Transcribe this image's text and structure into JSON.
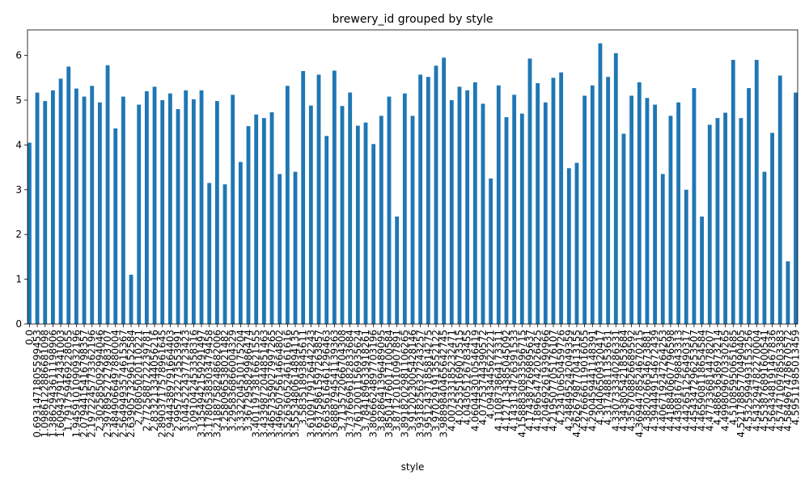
{
  "chart_data": {
    "type": "bar",
    "title": "brewery_id grouped by style",
    "x_label": "style",
    "color": "#1f77b4",
    "categories": [
      "0.0",
      "0.6931471805599453",
      "1.0986122886681098",
      "1.3862943611198906",
      "1.6094379124341003",
      "1.791759469228055",
      "1.9459101090932196",
      "2.0794415416798357",
      "2.1972245773362196",
      "2.302585092994046",
      "2.3978952727983707",
      "2.4849066497880004",
      "2.5649493574615367",
      "2.6390573296152584",
      "2.70805020110221",
      "2.772588722239781",
      "2.833213344056216",
      "2.8903717578961645",
      "2.9444389791664403",
      "2.995732273553991",
      "3.044522437723423",
      "3.091042453358316",
      "3.1354942159291497",
      "3.1780538303479458",
      "3.2188758248682006",
      "3.258096538021482",
      "3.295836866004329",
      "3.332204510175204",
      "3.367295829986474",
      "3.4011973816621555",
      "3.4339872044851463",
      "3.4657359027997265",
      "3.4965075614664802",
      "3.5263605246161616",
      "3.5553480614894135",
      "3.58351893845611",
      "3.6109179126442243",
      "3.6375861597263857",
      "3.6635616461296463",
      "3.6888794541139363",
      "3.713572066704308",
      "3.7376696182833684",
      "3.7612001156935624",
      "3.784189633918261",
      "3.8066624897703196",
      "3.828641396489095",
      "3.8501476017100584",
      "3.871201010907891",
      "3.8918202981106265",
      "3.912023005428146",
      "3.9318256327243257",
      "3.9512437185814275",
      "3.970291913552122",
      "3.9889840465642745",
      "4.007333185232471",
      "4.02535169073515",
      "4.04305126783455",
      "4.060443010546419",
      "4.07753744390572",
      "4.0943445622221",
      "4.110873864173311",
      "4.127134385045092",
      "4.143134726391533",
      "4.1588830833596715",
      "4.174387269895637",
      "4.189654742026425",
      "4.204692619390966",
      "4.219507705176107",
      "4.23410650459726",
      "4.248495242049359",
      "4.2626798770413155",
      "4.276666119016055",
      "4.290459441148391",
      "4.30406509320417",
      "4.31748811353631",
      "4.330733340286331",
      "4.343805421853684",
      "4.356708826689592",
      "4.3694478524670215",
      "4.382026634673881",
      "4.394449154672439",
      "4.406719247264253",
      "4.418840607796598",
      "4.430816798843313",
      "4.442651256490317",
      "4.454347296253507",
      "4.465908118654584",
      "4.477336814478207",
      "4.48863636973214",
      "4.499809670330265",
      "4.51085950651685",
      "4.5217885770490405",
      "4.532599493153256",
      "4.543294782270004",
      "4.553876891600541",
      "4.564348191467836",
      "4.574710978503383",
      "4.584967478670572",
      "4.59511985013459"
    ],
    "values": [
      4.05,
      5.17,
      4.98,
      5.22,
      5.48,
      5.75,
      5.26,
      5.08,
      5.32,
      4.95,
      5.78,
      4.37,
      5.08,
      1.1,
      4.9,
      5.2,
      5.3,
      5.0,
      5.15,
      4.8,
      5.22,
      5.02,
      5.22,
      3.15,
      4.98,
      3.12,
      5.12,
      3.62,
      4.42,
      4.68,
      4.6,
      4.73,
      3.35,
      5.32,
      3.4,
      5.65,
      4.88,
      5.57,
      4.2,
      5.66,
      4.87,
      5.17,
      4.43,
      4.5,
      4.02,
      4.65,
      5.08,
      2.4,
      5.15,
      4.65,
      5.57,
      5.52,
      5.77,
      5.95,
      5.0,
      5.3,
      5.22,
      5.4,
      4.92,
      3.25,
      5.33,
      4.62,
      5.12,
      4.7,
      5.93,
      5.38,
      4.95,
      5.5,
      5.62,
      3.48,
      3.6,
      5.1,
      5.33,
      6.27,
      5.52,
      6.05,
      4.25,
      5.1,
      5.4,
      5.05,
      4.9,
      3.35,
      4.65,
      4.95,
      3.0,
      5.27,
      2.4,
      4.45,
      4.6,
      4.72,
      5.9,
      4.6,
      5.27,
      5.9,
      3.4,
      4.27,
      5.55,
      1.4,
      5.17
    ],
    "ylim": [
      0,
      6.57
    ],
    "yticks": [
      0,
      1,
      2,
      3,
      4,
      5,
      6
    ]
  }
}
